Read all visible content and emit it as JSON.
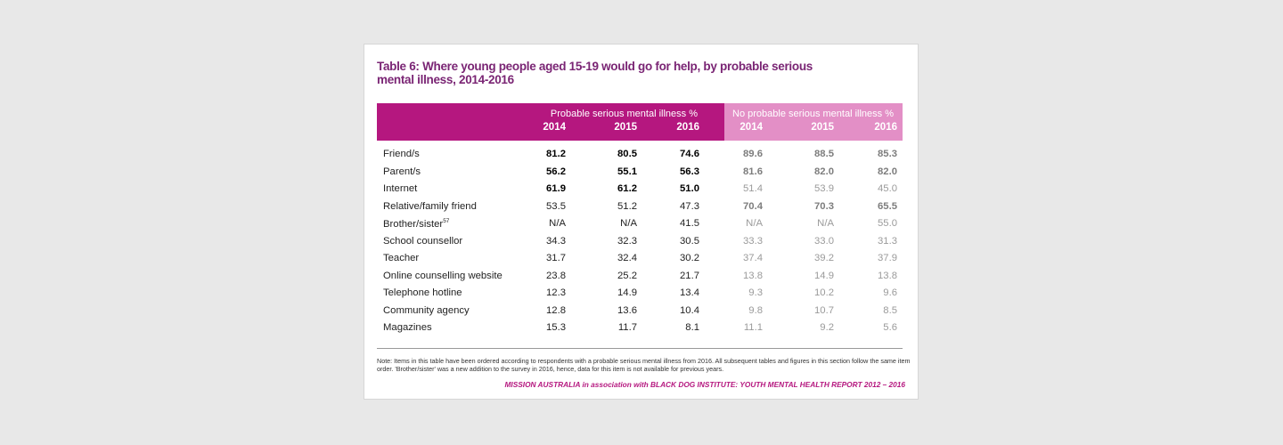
{
  "title": "Table 6: Where young people aged 15-19 would go for help, by probable serious mental illness, 2014-2016",
  "groups": {
    "probable": "Probable serious mental illness %",
    "no_probable": "No probable serious mental illness %"
  },
  "years": [
    "2014",
    "2015",
    "2016",
    "2014",
    "2015",
    "2016"
  ],
  "colors": {
    "header_primary": "#b5177f",
    "header_secondary": "#e38fc6",
    "title": "#7a2574"
  },
  "rows": [
    {
      "label": "Friend/s",
      "sup": "",
      "values": [
        "81.2",
        "80.5",
        "74.6",
        "89.6",
        "88.5",
        "85.3"
      ],
      "bold": true
    },
    {
      "label": "Parent/s",
      "sup": "",
      "values": [
        "56.2",
        "55.1",
        "56.3",
        "81.6",
        "82.0",
        "82.0"
      ],
      "bold": true
    },
    {
      "label": "Internet",
      "sup": "",
      "values": [
        "61.9",
        "61.2",
        "51.0",
        "51.4",
        "53.9",
        "45.0"
      ],
      "bold": "left"
    },
    {
      "label": "Relative/family friend",
      "sup": "",
      "values": [
        "53.5",
        "51.2",
        "47.3",
        "70.4",
        "70.3",
        "65.5"
      ],
      "bold": "right"
    },
    {
      "label": "Brother/sister",
      "sup": "57",
      "values": [
        "N/A",
        "N/A",
        "41.5",
        "N/A",
        "N/A",
        "55.0"
      ],
      "bold": false
    },
    {
      "label": "School counsellor",
      "sup": "",
      "values": [
        "34.3",
        "32.3",
        "30.5",
        "33.3",
        "33.0",
        "31.3"
      ],
      "bold": false
    },
    {
      "label": "Teacher",
      "sup": "",
      "values": [
        "31.7",
        "32.4",
        "30.2",
        "37.4",
        "39.2",
        "37.9"
      ],
      "bold": false
    },
    {
      "label": "Online counselling website",
      "sup": "",
      "values": [
        "23.8",
        "25.2",
        "21.7",
        "13.8",
        "14.9",
        "13.8"
      ],
      "bold": false
    },
    {
      "label": "Telephone hotline",
      "sup": "",
      "values": [
        "12.3",
        "14.9",
        "13.4",
        "9.3",
        "10.2",
        "9.6"
      ],
      "bold": false
    },
    {
      "label": "Community agency",
      "sup": "",
      "values": [
        "12.8",
        "13.6",
        "10.4",
        "9.8",
        "10.7",
        "8.5"
      ],
      "bold": false
    },
    {
      "label": "Magazines",
      "sup": "",
      "values": [
        "15.3",
        "11.7",
        "8.1",
        "11.1",
        "9.2",
        "5.6"
      ],
      "bold": false
    }
  ],
  "note": "Note: Items in this table have been ordered according to respondents with a probable serious mental illness from 2016. All subsequent tables and figures in this section follow the same item order. 'Brother/sister' was a new addition to the survey in 2016, hence, data for this item is not available for previous years.",
  "footer": "MISSION AUSTRALIA in association with BLACK DOG INSTITUTE: YOUTH MENTAL HEALTH REPORT 2012 – 2016"
}
